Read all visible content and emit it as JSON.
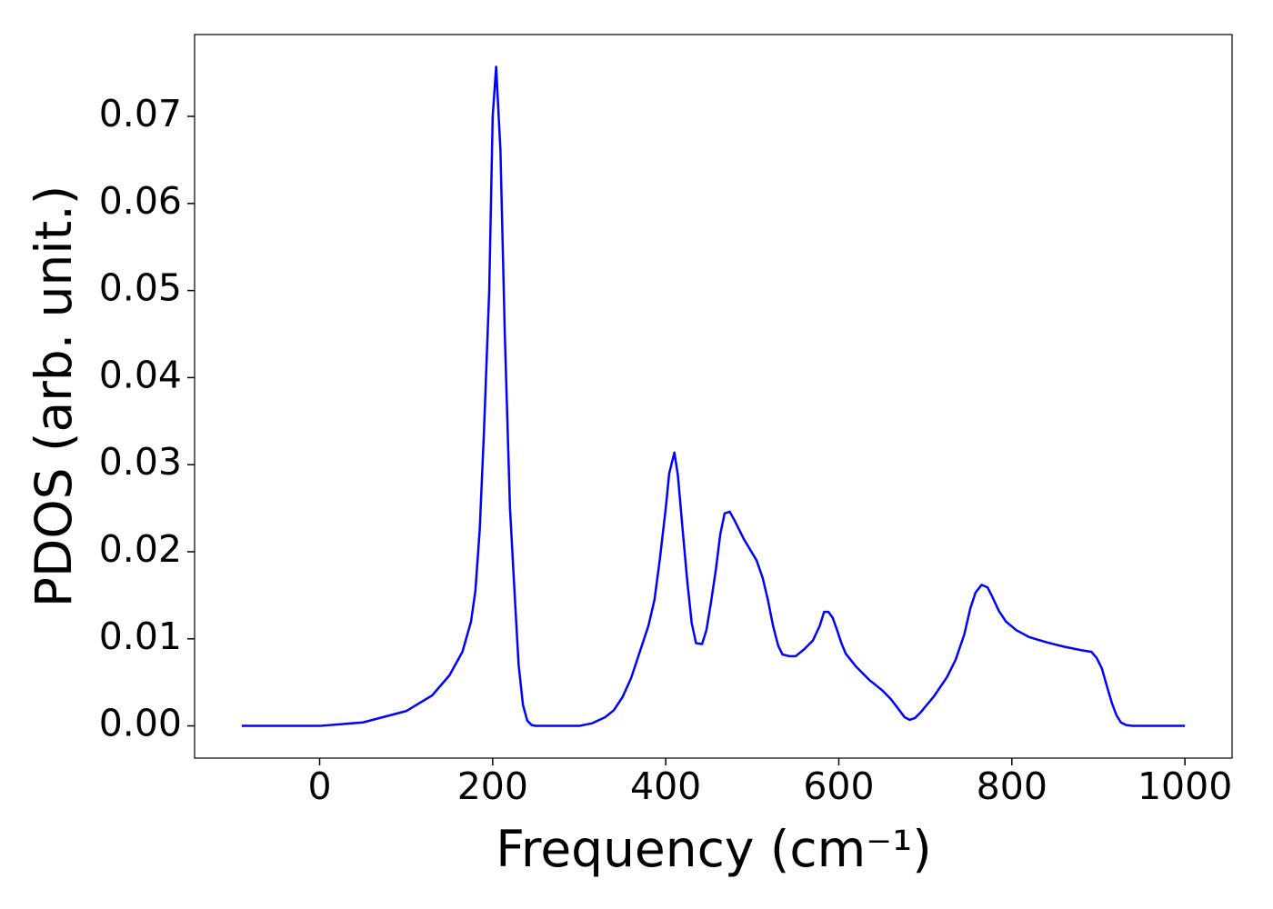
{
  "chart_data": {
    "type": "line",
    "xlabel": "Frequency (cm⁻¹)",
    "ylabel": "PDOS (arb. unit.)",
    "xlim": [
      -144.5,
      1054.5
    ],
    "ylim": [
      -0.0037,
      0.0794
    ],
    "xticks": [
      0,
      200,
      400,
      600,
      800,
      1000
    ],
    "yticks": [
      {
        "value": 0,
        "label": "0.00"
      },
      {
        "value": 0.01,
        "label": "0.01"
      },
      {
        "value": 0.02,
        "label": "0.02"
      },
      {
        "value": 0.03,
        "label": "0.03"
      },
      {
        "value": 0.04,
        "label": "0.04"
      },
      {
        "value": 0.05,
        "label": "0.05"
      },
      {
        "value": 0.06,
        "label": "0.06"
      },
      {
        "value": 0.07,
        "label": "0.07"
      }
    ],
    "grid": false,
    "x": [
      -90,
      0,
      50,
      100,
      130,
      150,
      165,
      175,
      180,
      185,
      190,
      196,
      200,
      204,
      209,
      214,
      220,
      226,
      230,
      235,
      240,
      245,
      250,
      300,
      315,
      330,
      340,
      350,
      360,
      370,
      380,
      387,
      393,
      400,
      404,
      410,
      414,
      420,
      425,
      430,
      435,
      442,
      447,
      452,
      458,
      463,
      468,
      474,
      480,
      490,
      505,
      512,
      518,
      524,
      530,
      535,
      543,
      550,
      560,
      570,
      578,
      583,
      588,
      593,
      598,
      603,
      608,
      620,
      635,
      650,
      660,
      670,
      676,
      682,
      688,
      695,
      710,
      725,
      735,
      745,
      752,
      758,
      765,
      772,
      778,
      785,
      793,
      805,
      820,
      840,
      860,
      880,
      892,
      898,
      904,
      910,
      916,
      921,
      926,
      932,
      940,
      1000
    ],
    "series": [
      {
        "name": "PDOS",
        "color": "#0000ff",
        "values": [
          0,
          0,
          0.0004,
          0.0017,
          0.0035,
          0.0058,
          0.0085,
          0.012,
          0.0155,
          0.0225,
          0.034,
          0.05,
          0.07,
          0.0757,
          0.066,
          0.045,
          0.025,
          0.014,
          0.007,
          0.0024,
          0.0006,
          0.0001,
          0,
          0,
          0.0003,
          0.001,
          0.0018,
          0.0033,
          0.0055,
          0.0085,
          0.0115,
          0.0145,
          0.019,
          0.025,
          0.029,
          0.0314,
          0.0288,
          0.022,
          0.0165,
          0.0118,
          0.0095,
          0.0094,
          0.011,
          0.014,
          0.018,
          0.022,
          0.0244,
          0.0246,
          0.0235,
          0.0215,
          0.019,
          0.017,
          0.0145,
          0.0115,
          0.0092,
          0.0082,
          0.008,
          0.008,
          0.0088,
          0.0098,
          0.0115,
          0.0131,
          0.0131,
          0.0124,
          0.011,
          0.0095,
          0.0083,
          0.0068,
          0.0053,
          0.0041,
          0.0031,
          0.0018,
          0.001,
          0.0007,
          0.0009,
          0.0016,
          0.0034,
          0.0056,
          0.0076,
          0.0105,
          0.0135,
          0.0153,
          0.0162,
          0.0159,
          0.0147,
          0.0132,
          0.012,
          0.011,
          0.0102,
          0.0096,
          0.0091,
          0.0087,
          0.0085,
          0.0078,
          0.0066,
          0.0045,
          0.0025,
          0.0012,
          0.0004,
          0.0001,
          0,
          0
        ]
      }
    ]
  }
}
